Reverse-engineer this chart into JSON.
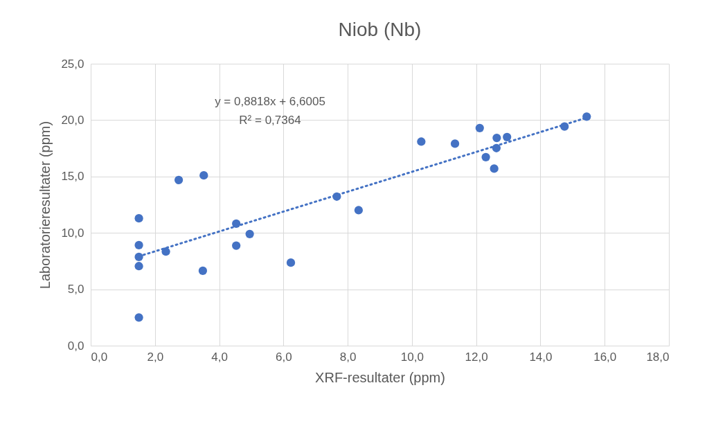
{
  "chart_data": {
    "type": "scatter",
    "title": "Niob (Nb)",
    "xlabel": "XRF-resultater (ppm)",
    "ylabel": "Laboratorieresultater (ppm)",
    "series": [
      {
        "color": "#4472c4",
        "marker": "circle",
        "x": [
          1.5,
          1.5,
          1.5,
          1.5,
          1.5,
          2.34,
          2.74,
          3.52,
          3.49,
          4.53,
          4.53,
          4.95,
          6.23,
          7.66,
          8.34,
          10.29,
          11.34,
          12.11,
          12.64,
          12.96,
          12.63,
          12.3,
          12.56,
          14.75,
          15.44
        ],
        "values": [
          2.5,
          7.05,
          7.87,
          8.91,
          11.29,
          8.34,
          14.69,
          15.1,
          6.64,
          10.82,
          8.87,
          9.9,
          7.36,
          13.22,
          12.01,
          18.09,
          17.91,
          19.3,
          18.42,
          18.5,
          17.52,
          16.72,
          15.7,
          19.43,
          20.31
        ]
      },
      {
        "type": "line",
        "color": "#4472c4",
        "line_style": "dotted",
        "marker": "none",
        "x": [
          1.5,
          15.44
        ],
        "values": [
          7.92,
          20.21
        ]
      }
    ],
    "annotations": [
      "y = 0,8818x + 6,6005",
      "R² = 0,7364"
    ],
    "xlim": [
      0,
      18
    ],
    "ylim": [
      0,
      25
    ],
    "xticks": [
      {
        "value": 0,
        "label": "0,0"
      },
      {
        "value": 2,
        "label": "2,0"
      },
      {
        "value": 4,
        "label": "4,0"
      },
      {
        "value": 6,
        "label": "6,0"
      },
      {
        "value": 8,
        "label": "8,0"
      },
      {
        "value": 10,
        "label": "10,0"
      },
      {
        "value": 12,
        "label": "12,0"
      },
      {
        "value": 14,
        "label": "14,0"
      },
      {
        "value": 16,
        "label": "16,0"
      },
      {
        "value": 18,
        "label": "18,0"
      }
    ],
    "yticks": [
      {
        "value": 0,
        "label": "0,0"
      },
      {
        "value": 5,
        "label": "5,0"
      },
      {
        "value": 10,
        "label": "10,0"
      },
      {
        "value": 15,
        "label": "15,0"
      },
      {
        "value": 20,
        "label": "20,0"
      },
      {
        "value": 25,
        "label": "25,0"
      }
    ],
    "grid": true
  }
}
